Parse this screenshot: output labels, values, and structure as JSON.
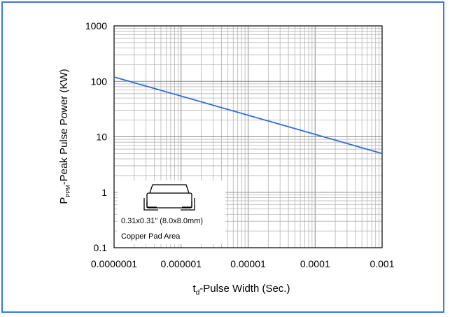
{
  "chart_data": {
    "type": "line",
    "x_scale": "log",
    "y_scale": "log",
    "xlim": [
      1e-07,
      0.001
    ],
    "ylim": [
      0.1,
      1000
    ],
    "x_tick_labels": [
      "0.0000001",
      "0.000001",
      "0.00001",
      "0.0001",
      "0.001"
    ],
    "y_tick_labels": [
      "0.1",
      "1",
      "10",
      "100",
      "1000"
    ],
    "xlabel_main": "t",
    "xlabel_sub": "d",
    "xlabel_rest": "-Pulse Width (Sec.)",
    "ylabel_main": "P",
    "ylabel_sub": "PPM",
    "ylabel_rest": "-Peak Pulse Power (KW)",
    "grid": true,
    "series": [
      {
        "x": [
          1e-07,
          0.001
        ],
        "y": [
          120,
          5
        ],
        "color": "#2f6fd6"
      }
    ],
    "annotation": {
      "line1": "0.31x0.31\" (8.0x8.0mm)",
      "line2": "Copper Pad Area",
      "icon": "smd-package-icon"
    }
  },
  "colors": {
    "frame": "#3a7bd5",
    "grid": "#b4b4b4",
    "series": "#2f6fd6"
  }
}
